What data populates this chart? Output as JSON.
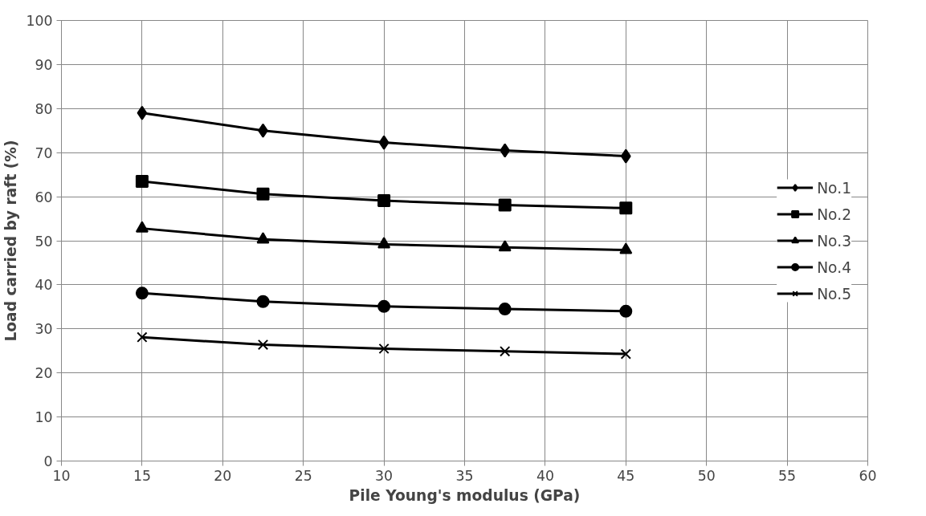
{
  "chart_data": {
    "type": "line",
    "xlabel": "Pile Young's modulus (GPa)",
    "ylabel": "Load carried by raft (%)",
    "x": [
      15,
      22.5,
      30,
      37.5,
      45
    ],
    "series": [
      {
        "name": "No.1",
        "color": "#000000",
        "marker": "diamond",
        "values": [
          79,
          75,
          72.3,
          70.5,
          69.2
        ]
      },
      {
        "name": "No.2",
        "color": "#000000",
        "marker": "square",
        "values": [
          63.5,
          60.6,
          59.1,
          58.1,
          57.4
        ]
      },
      {
        "name": "No.3",
        "color": "#000000",
        "marker": "triangle",
        "values": [
          52.8,
          50.3,
          49.2,
          48.5,
          47.9
        ]
      },
      {
        "name": "No.4",
        "color": "#000000",
        "marker": "circle",
        "values": [
          38.1,
          36.2,
          35.1,
          34.5,
          34
        ]
      },
      {
        "name": "No.5",
        "color": "#000000",
        "marker": "cross",
        "values": [
          28.1,
          26.4,
          25.5,
          24.9,
          24.3
        ]
      }
    ],
    "xlim": [
      10,
      60
    ],
    "xticks": [
      10,
      15,
      20,
      25,
      30,
      35,
      40,
      45,
      50,
      55,
      60
    ],
    "ylim": [
      0,
      100
    ],
    "yticks": [
      0,
      10,
      20,
      30,
      40,
      50,
      60,
      70,
      80,
      90,
      100
    ],
    "grid": true,
    "legend": "right",
    "line_style": "solid"
  }
}
